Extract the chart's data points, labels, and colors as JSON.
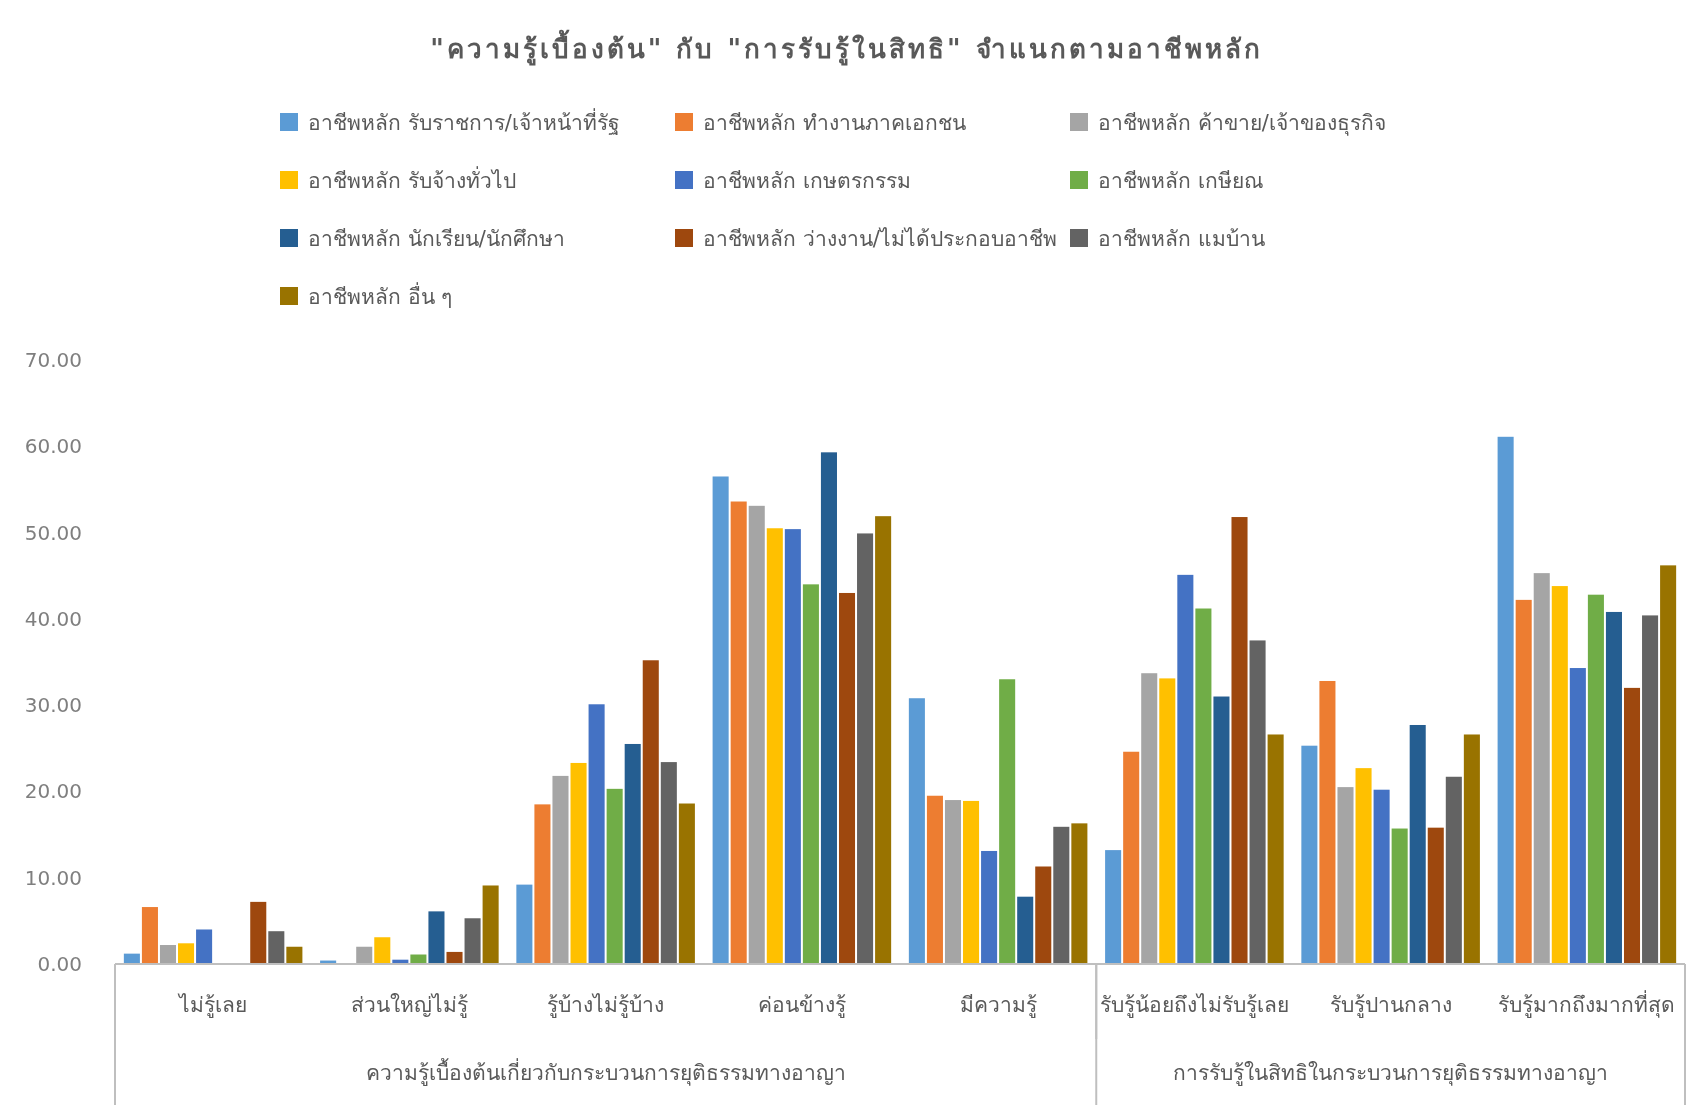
{
  "chart_data": {
    "type": "bar",
    "title": "\"ความรู้เบื้องต้น\" กับ \"การรับรู้ในสิทธิ\" จำแนกตามอาชีพหลัก",
    "categories": [
      "ไม่รู้เลย",
      "ส่วนใหญ่ไม่รู้",
      "รู้บ้างไม่รู้บ้าง",
      "ค่อนข้างรู้",
      "มีความรู้",
      "รับรู้น้อยถึงไม่รับรู้เลย",
      "รับรู้ปานกลาง",
      "รับรู้มากถึงมากที่สุด"
    ],
    "series": [
      {
        "name": "อาชีพหลัก รับราชการ/เจ้าหน้าที่รัฐ",
        "color": "#5b9bd5",
        "values": [
          1.2,
          0.4,
          9.2,
          56.5,
          30.8,
          13.2,
          25.3,
          61.1
        ]
      },
      {
        "name": "อาชีพหลัก ทำงานภาคเอกชน",
        "color": "#ed7d31",
        "values": [
          6.6,
          0,
          18.5,
          53.6,
          19.5,
          24.6,
          32.8,
          42.2
        ]
      },
      {
        "name": "อาชีพหลัก ค้าขาย/เจ้าของธุรกิจ",
        "color": "#a5a5a5",
        "values": [
          2.2,
          2.0,
          21.8,
          53.1,
          19.0,
          33.7,
          20.5,
          45.3
        ]
      },
      {
        "name": "อาชีพหลัก รับจ้างทั่วไป",
        "color": "#ffc000",
        "values": [
          2.4,
          3.1,
          23.3,
          50.5,
          18.9,
          33.1,
          22.7,
          43.8
        ]
      },
      {
        "name": "อาชีพหลัก เกษตรกรรม",
        "color": "#4472c4",
        "values": [
          4.0,
          0.5,
          30.1,
          50.4,
          13.1,
          45.1,
          20.2,
          34.3
        ]
      },
      {
        "name": "อาชีพหลัก เกษียณ",
        "color": "#70ad47",
        "values": [
          0,
          1.1,
          20.3,
          44.0,
          33.0,
          41.2,
          15.7,
          42.8
        ]
      },
      {
        "name": "อาชีพหลัก นักเรียน/นักศึกษา",
        "color": "#255e91",
        "values": [
          0,
          6.1,
          25.5,
          59.3,
          7.8,
          31.0,
          27.7,
          40.8
        ]
      },
      {
        "name": "อาชีพหลัก ว่างงาน/ไม่ได้ประกอบอาชีพ",
        "color": "#9e480e",
        "values": [
          7.2,
          1.4,
          35.2,
          43.0,
          11.3,
          51.8,
          15.8,
          32.0
        ]
      },
      {
        "name": "อาชีพหลัก แมบ้าน",
        "color": "#636363",
        "values": [
          3.8,
          5.3,
          23.4,
          49.9,
          15.9,
          37.5,
          21.7,
          40.4
        ]
      },
      {
        "name": "อาชีพหลัก อื่น ๆ",
        "color": "#997300",
        "values": [
          2.0,
          9.1,
          18.6,
          51.9,
          16.3,
          26.6,
          26.6,
          46.2
        ]
      }
    ],
    "ylim": [
      0,
      70
    ],
    "yticks": [
      {
        "value": 0,
        "label": "0.00"
      },
      {
        "value": 10,
        "label": "10.00"
      },
      {
        "value": 20,
        "label": "20.00"
      },
      {
        "value": 30,
        "label": "30.00"
      },
      {
        "value": 40,
        "label": "40.00"
      },
      {
        "value": 50,
        "label": "50.00"
      },
      {
        "value": 60,
        "label": "60.00"
      },
      {
        "value": 70,
        "label": "70.00"
      }
    ],
    "annotations": [
      "ความรู้เบื้องต้นเกี่ยวกับกระบวนการยุติธรรมทางอาญา",
      "การรับรู้ในสิทธิในกระบวนการยุติธรรมทางอาญา"
    ],
    "legend": "top",
    "grid": false
  }
}
